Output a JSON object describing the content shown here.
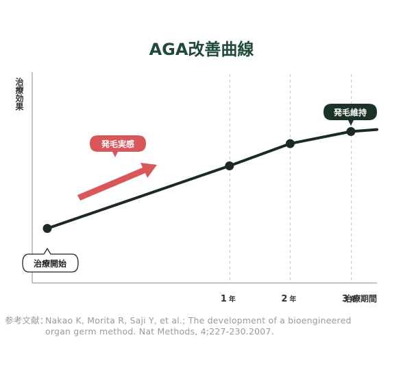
{
  "title": "AGA改善曲線",
  "colors": {
    "title": "#1f4a38",
    "line": "#1b2b22",
    "accent_red": "#d9575a",
    "dark_green": "#1b3327",
    "grid": "#cccccc",
    "axis": "#8a8a8a",
    "reference": "#9a9a9a"
  },
  "chart_data": {
    "type": "line",
    "title": "AGA改善曲線",
    "ylabel": "治療効果",
    "xlabel": "治療期間",
    "x_ticks": [
      {
        "num": "1",
        "unit": "年"
      },
      {
        "num": "2",
        "unit": "年"
      },
      {
        "num": "3",
        "unit": "年"
      }
    ],
    "xlim": [
      0,
      5.3
    ],
    "ylim": [
      0,
      1
    ],
    "series": [
      {
        "x": [
          0,
          3.0,
          4.0,
          5.0,
          7.0
        ],
        "y": [
          0.27,
          0.58,
          0.69,
          0.75,
          0.76
        ]
      }
    ],
    "x_markers": [
      0,
      3.0,
      4.0,
      5.0
    ],
    "gridlines_at": [
      3.0,
      4.0,
      5.0
    ],
    "annotations": [
      {
        "text": "治療開始",
        "style": "outline",
        "anchor": "start"
      },
      {
        "text": "発毛実感",
        "style": "red",
        "anchor": "arrow"
      },
      {
        "text": "発毛維持",
        "style": "dark",
        "anchor": "end"
      }
    ]
  },
  "reference": {
    "label": "参考文献：",
    "line1": "Nakao K, Morita R, Saji Y, et al.; The development of a bioengineered",
    "line2": "organ germ method. Nat Methods, 4;227-230.2007."
  }
}
